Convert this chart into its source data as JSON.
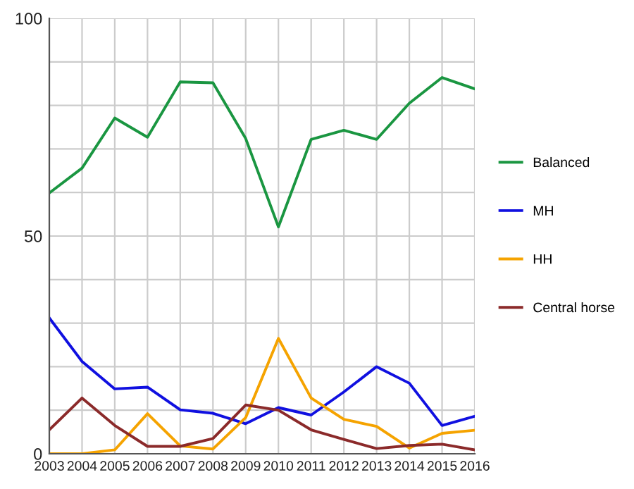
{
  "chart_data": {
    "type": "line",
    "x": [
      2003,
      2004,
      2005,
      2006,
      2007,
      2008,
      2009,
      2010,
      2011,
      2012,
      2013,
      2014,
      2015,
      2016
    ],
    "series": [
      {
        "name": "Balanced",
        "color": "#1a9641",
        "values": [
          59.9,
          65.6,
          77.1,
          72.7,
          85.4,
          85.2,
          72.4,
          52.1,
          72.2,
          74.3,
          72.2,
          80.5,
          86.4,
          83.8
        ]
      },
      {
        "name": "MH",
        "color": "#1010e0",
        "values": [
          31.2,
          21.2,
          14.9,
          15.3,
          10.1,
          9.3,
          6.9,
          10.6,
          8.9,
          14.2,
          20.0,
          16.2,
          6.5,
          8.6
        ]
      },
      {
        "name": "HH",
        "color": "#f5a300",
        "values": [
          0,
          0,
          0.9,
          9.2,
          1.8,
          1.1,
          8.3,
          26.5,
          12.8,
          7.9,
          6.3,
          1.3,
          4.7,
          5.4
        ]
      },
      {
        "name": "Central horse",
        "color": "#8b2a2a",
        "values": [
          5.5,
          12.8,
          6.5,
          1.7,
          1.7,
          3.5,
          11.2,
          10.0,
          5.5,
          3.3,
          1.2,
          1.9,
          2.2,
          0.9
        ]
      }
    ],
    "xlim": [
      2003,
      2016
    ],
    "xticks": [
      2003,
      2004,
      2005,
      2006,
      2007,
      2008,
      2009,
      2010,
      2011,
      2012,
      2013,
      2014,
      2015,
      2016
    ],
    "ylim": [
      0,
      100
    ],
    "yticks": [
      0,
      {
        "value": 10,
        "label": null
      },
      {
        "value": 20,
        "label": null
      },
      {
        "value": 30,
        "label": null
      },
      {
        "value": 40,
        "label": null
      },
      50,
      {
        "value": 60,
        "label": null
      },
      {
        "value": 70,
        "label": null
      },
      {
        "value": 80,
        "label": null
      },
      {
        "value": 90,
        "label": null
      },
      100
    ],
    "grid": true,
    "legend": "right",
    "marker": "none",
    "line_style": "solid"
  }
}
